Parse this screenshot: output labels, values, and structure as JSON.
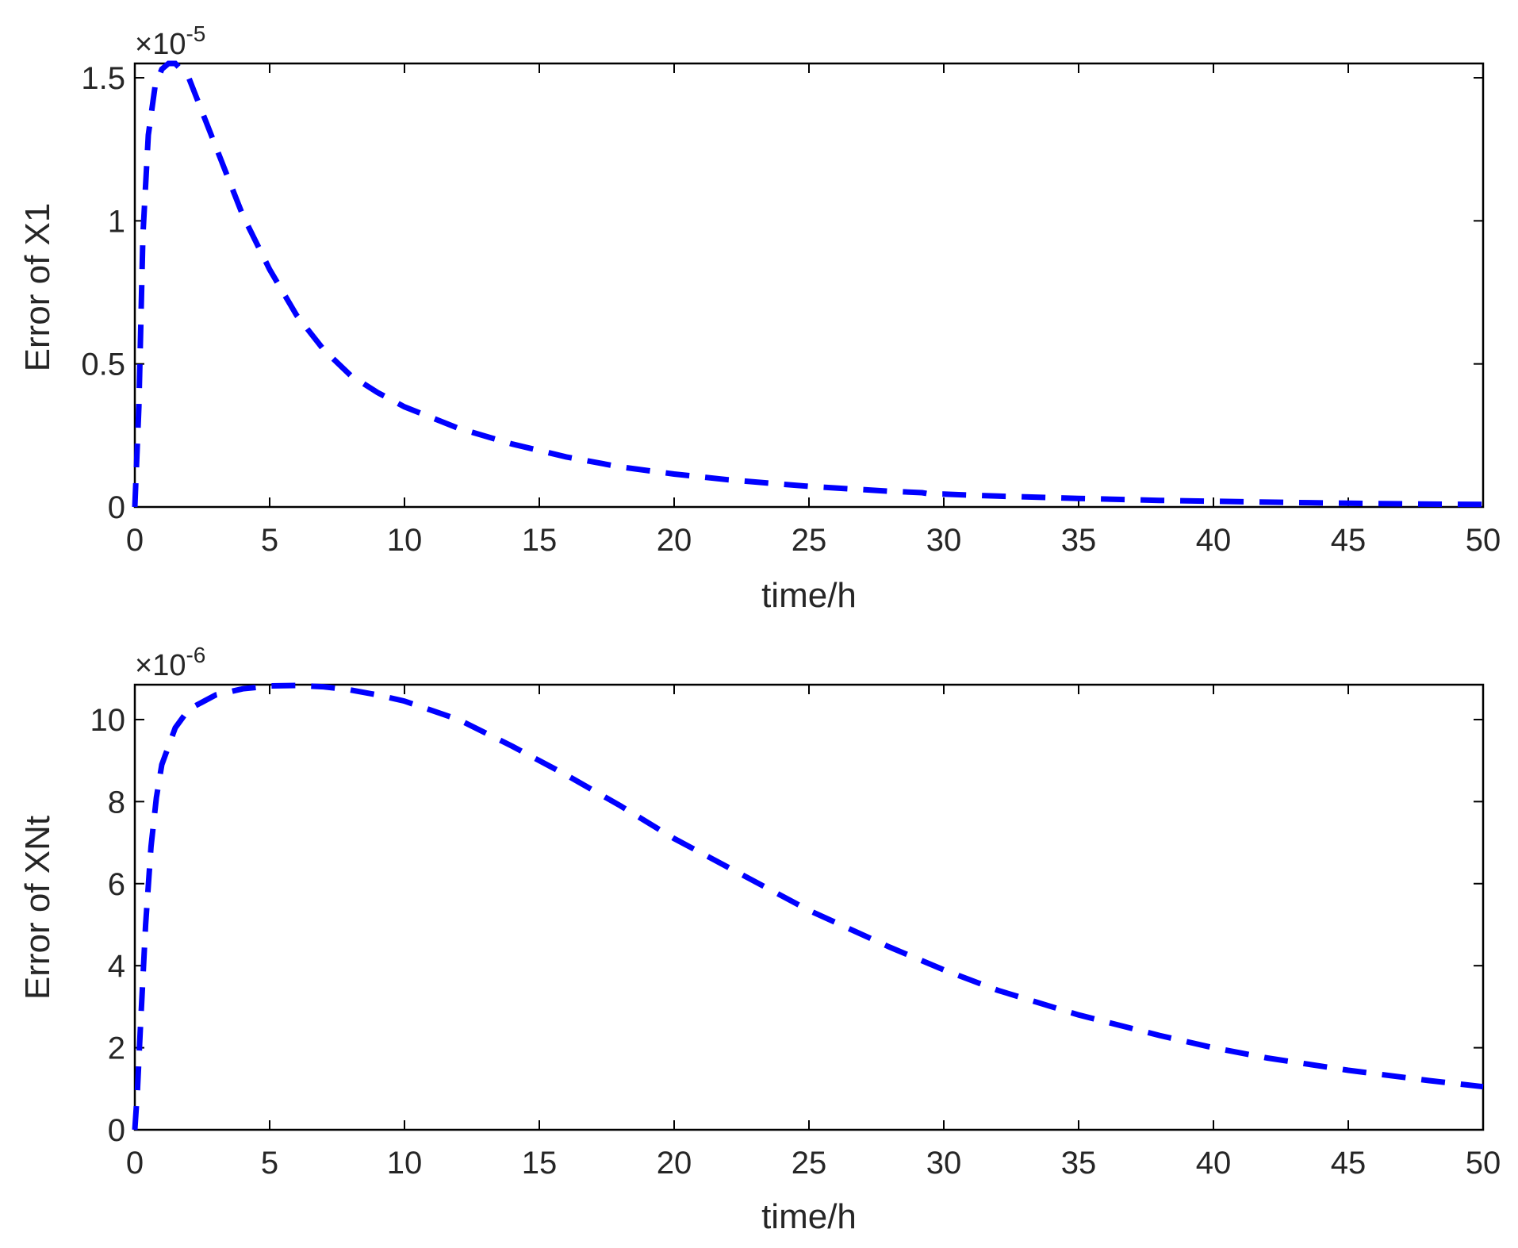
{
  "chart_data": [
    {
      "type": "line",
      "xlabel": "time/h",
      "ylabel": "Error of X1",
      "multiplier": {
        "base": "×10",
        "exponent": "-5"
      },
      "xlim": [
        0,
        50
      ],
      "ylim": [
        0,
        1.55
      ],
      "xticks": [
        0,
        5,
        10,
        15,
        20,
        25,
        30,
        35,
        40,
        45,
        50
      ],
      "xtick_labels": [
        "0",
        "5",
        "10",
        "15",
        "20",
        "25",
        "30",
        "35",
        "40",
        "45",
        "50"
      ],
      "yticks": [
        0,
        0.5,
        1,
        1.5
      ],
      "ytick_labels": [
        "0",
        "0.5",
        "1",
        "1.5"
      ],
      "grid": false,
      "color": "#0000ff",
      "line_style": "dashed",
      "series": [
        {
          "x": [
            0,
            0.15,
            0.3,
            0.5,
            0.75,
            1,
            1.25,
            1.5,
            2,
            2.5,
            3,
            4,
            5,
            6,
            7,
            8,
            9,
            10,
            12,
            14,
            16,
            18,
            20,
            22,
            25,
            28,
            29.2,
            29.5,
            30,
            32,
            35,
            38,
            40,
            42,
            45,
            48,
            50
          ],
          "y": [
            0,
            0.35,
            0.95,
            1.3,
            1.47,
            1.53,
            1.55,
            1.55,
            1.5,
            1.38,
            1.26,
            1.02,
            0.83,
            0.67,
            0.55,
            0.46,
            0.4,
            0.35,
            0.275,
            0.22,
            0.175,
            0.14,
            0.115,
            0.095,
            0.072,
            0.055,
            0.05,
            0.045,
            0.045,
            0.038,
            0.03,
            0.023,
            0.02,
            0.017,
            0.013,
            0.01,
            0.009
          ]
        }
      ]
    },
    {
      "type": "line",
      "xlabel": "time/h",
      "ylabel": "Error of XNt",
      "multiplier": {
        "base": "×10",
        "exponent": "-6"
      },
      "xlim": [
        0,
        50
      ],
      "ylim": [
        0,
        10.85
      ],
      "xticks": [
        0,
        5,
        10,
        15,
        20,
        25,
        30,
        35,
        40,
        45,
        50
      ],
      "xtick_labels": [
        "0",
        "5",
        "10",
        "15",
        "20",
        "25",
        "30",
        "35",
        "40",
        "45",
        "50"
      ],
      "yticks": [
        0,
        2,
        4,
        6,
        8,
        10
      ],
      "ytick_labels": [
        "0",
        "2",
        "4",
        "6",
        "8",
        "10"
      ],
      "grid": false,
      "color": "#0000ff",
      "line_style": "dashed",
      "series": [
        {
          "x": [
            0,
            0.1,
            0.2,
            0.4,
            0.6,
            0.8,
            1,
            1.5,
            2,
            3,
            4,
            5,
            6,
            7,
            8,
            9,
            10,
            12,
            14,
            16,
            18,
            20,
            22,
            25,
            28,
            30,
            32,
            35,
            38,
            40,
            42,
            45,
            48,
            50
          ],
          "y": [
            0,
            1.0,
            2.4,
            5.0,
            6.9,
            8.1,
            8.9,
            9.8,
            10.25,
            10.6,
            10.75,
            10.82,
            10.83,
            10.8,
            10.72,
            10.6,
            10.45,
            10.0,
            9.35,
            8.65,
            7.9,
            7.1,
            6.4,
            5.35,
            4.45,
            3.9,
            3.4,
            2.8,
            2.3,
            2.0,
            1.75,
            1.45,
            1.2,
            1.05
          ]
        }
      ]
    }
  ]
}
